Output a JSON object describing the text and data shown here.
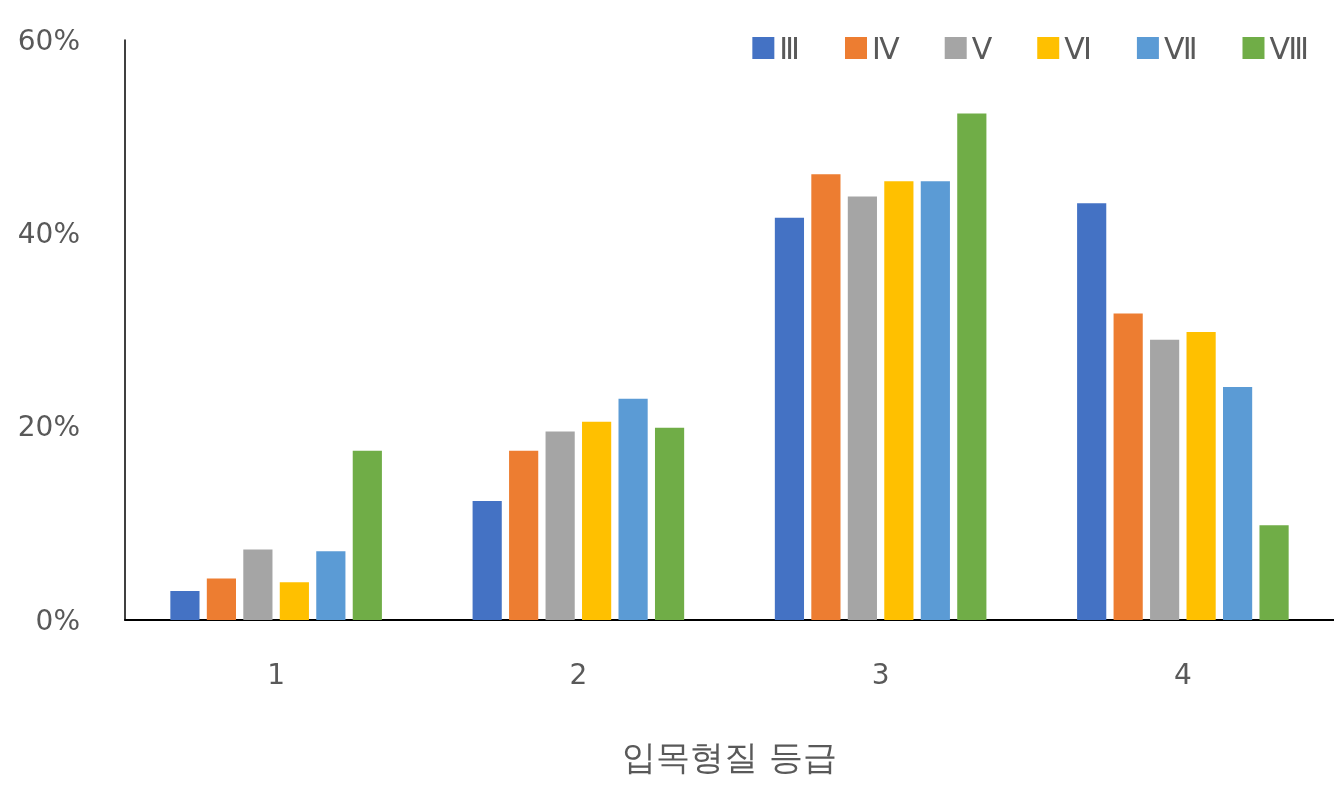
{
  "chart_data": {
    "type": "bar",
    "xlabel": "입목형질 등급",
    "categories": [
      "1",
      "2",
      "3",
      "4"
    ],
    "series": [
      {
        "name": "Ⅲ",
        "color": "#4472c4",
        "values": [
          3.0,
          12.3,
          41.6,
          43.1
        ]
      },
      {
        "name": "Ⅳ",
        "color": "#ed7d31",
        "values": [
          4.3,
          17.5,
          46.1,
          31.7
        ]
      },
      {
        "name": "Ⅴ",
        "color": "#a5a5a5",
        "values": [
          7.3,
          19.5,
          43.8,
          29.0
        ]
      },
      {
        "name": "Ⅵ",
        "color": "#ffc000",
        "values": [
          3.9,
          20.5,
          45.4,
          29.8
        ]
      },
      {
        "name": "Ⅶ",
        "color": "#5b9bd5",
        "values": [
          7.1,
          22.9,
          45.4,
          24.1
        ]
      },
      {
        "name": "Ⅷ",
        "color": "#70ad47",
        "values": [
          17.5,
          19.9,
          52.4,
          9.8
        ]
      }
    ],
    "ylim": [
      0,
      60
    ],
    "yticks": [
      {
        "value": 0,
        "label": "0%"
      },
      {
        "value": 20,
        "label": "20%"
      },
      {
        "value": 40,
        "label": "40%"
      },
      {
        "value": 60,
        "label": "60%"
      }
    ],
    "grid": false,
    "legend": "top right"
  }
}
